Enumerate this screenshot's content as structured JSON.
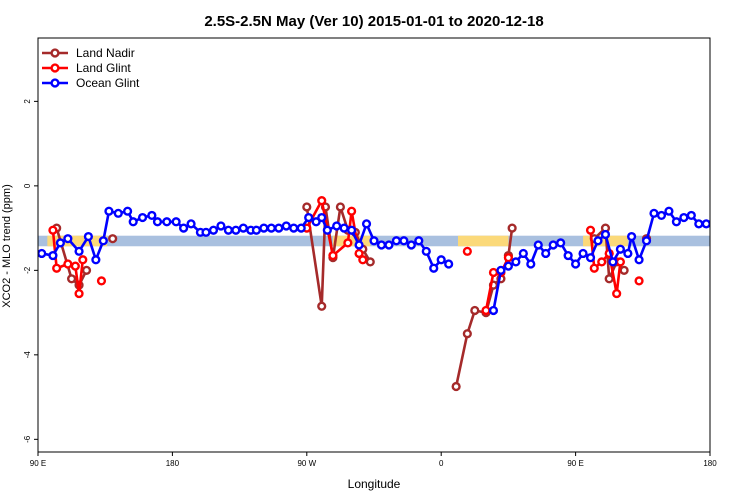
{
  "chart_data": {
    "type": "line",
    "title": "2.5S-2.5N May (Ver 10)   2015-01-01 to 2020-12-18",
    "xlabel": "Longitude",
    "ylabel": "XCO2 - MLO trend (ppm)",
    "xlim": [
      0,
      360
    ],
    "ylim": [
      -6.3,
      3.5
    ],
    "x_ticks": [
      {
        "value": 0,
        "label": "90 E"
      },
      {
        "value": 72,
        "label": "180"
      },
      {
        "value": 144,
        "label": "90 W"
      },
      {
        "value": 216,
        "label": "0"
      },
      {
        "value": 288,
        "label": "90 E"
      },
      {
        "value": 360,
        "label": "180"
      }
    ],
    "y_ticks": [
      2,
      0,
      -2,
      -4,
      -6
    ],
    "legend_position": "top-left",
    "background_bands": [
      {
        "color": "#a9c0df",
        "x": [
          0,
          360
        ],
        "y": [
          -1.43,
          -1.18
        ]
      },
      {
        "color": "#fbd97a",
        "x": [
          5,
          37
        ],
        "y": [
          -1.43,
          -1.18
        ]
      },
      {
        "color": "#fbd97a",
        "x": [
          158,
          178
        ],
        "y": [
          -1.43,
          -1.18
        ]
      },
      {
        "color": "#fbd97a",
        "x": [
          225,
          252
        ],
        "y": [
          -1.43,
          -1.18
        ]
      },
      {
        "color": "#fbd97a",
        "x": [
          292,
          316
        ],
        "y": [
          -1.43,
          -1.18
        ]
      }
    ],
    "series": [
      {
        "name": "Land Nadir",
        "color": "#a52a2a",
        "segments": [
          [
            [
              10,
              -1.0
            ],
            [
              18,
              -2.2
            ],
            [
              22,
              -2.35
            ],
            [
              26,
              -2.0
            ]
          ],
          [
            [
              40,
              -1.25
            ]
          ],
          [
            [
              144,
              -0.5
            ],
            [
              152,
              -2.85
            ],
            [
              154,
              -0.5
            ],
            [
              158,
              -1.7
            ],
            [
              162,
              -0.5
            ],
            [
              166,
              -1.05
            ],
            [
              170,
              -1.1
            ],
            [
              174,
              -1.5
            ],
            [
              178,
              -1.8
            ]
          ],
          [
            [
              224,
              -4.75
            ],
            [
              230,
              -3.5
            ],
            [
              234,
              -2.95
            ],
            [
              240,
              -3.0
            ],
            [
              244,
              -2.35
            ],
            [
              248,
              -2.2
            ],
            [
              252,
              -1.65
            ],
            [
              254,
              -1.0
            ]
          ],
          [
            [
              298,
              -1.25
            ],
            [
              304,
              -1.0
            ],
            [
              306,
              -2.2
            ],
            [
              310,
              -1.8
            ],
            [
              314,
              -2.0
            ]
          ],
          [
            [
              326,
              -1.25
            ]
          ]
        ]
      },
      {
        "name": "Land Glint",
        "color": "#ff0000",
        "segments": [
          [
            [
              8,
              -1.05
            ],
            [
              10,
              -1.95
            ],
            [
              16,
              -1.85
            ],
            [
              20,
              -1.9
            ],
            [
              22,
              -2.55
            ],
            [
              24,
              -1.75
            ]
          ],
          [
            [
              34,
              -2.25
            ]
          ],
          [
            [
              144,
              -1.0
            ],
            [
              152,
              -0.35
            ],
            [
              158,
              -1.65
            ],
            [
              166,
              -1.35
            ],
            [
              168,
              -0.6
            ],
            [
              172,
              -1.6
            ],
            [
              174,
              -1.75
            ]
          ],
          [
            [
              230,
              -1.55
            ]
          ],
          [
            [
              240,
              -2.95
            ],
            [
              244,
              -2.05
            ],
            [
              248,
              -2.05
            ],
            [
              252,
              -1.7
            ]
          ],
          [
            [
              296,
              -1.05
            ],
            [
              298,
              -1.95
            ],
            [
              302,
              -1.8
            ],
            [
              306,
              -1.6
            ],
            [
              310,
              -2.55
            ],
            [
              312,
              -1.8
            ]
          ],
          [
            [
              322,
              -2.25
            ]
          ]
        ]
      },
      {
        "name": "Ocean Glint",
        "color": "#0000ff",
        "segments": [
          [
            [
              2,
              -1.6
            ],
            [
              8,
              -1.65
            ],
            [
              12,
              -1.35
            ],
            [
              16,
              -1.25
            ],
            [
              22,
              -1.55
            ],
            [
              27,
              -1.2
            ],
            [
              31,
              -1.75
            ],
            [
              35,
              -1.3
            ],
            [
              38,
              -0.6
            ],
            [
              43,
              -0.65
            ],
            [
              48,
              -0.6
            ],
            [
              51,
              -0.85
            ],
            [
              56,
              -0.75
            ],
            [
              61,
              -0.7
            ],
            [
              64,
              -0.85
            ],
            [
              69,
              -0.85
            ],
            [
              74,
              -0.85
            ],
            [
              78,
              -1.0
            ],
            [
              82,
              -0.9
            ],
            [
              87,
              -1.1
            ],
            [
              90,
              -1.1
            ],
            [
              94,
              -1.05
            ],
            [
              98,
              -0.95
            ],
            [
              102,
              -1.05
            ],
            [
              106,
              -1.05
            ],
            [
              110,
              -1.0
            ],
            [
              114,
              -1.05
            ],
            [
              117,
              -1.05
            ],
            [
              121,
              -1.0
            ],
            [
              125,
              -1.0
            ],
            [
              129,
              -1.0
            ],
            [
              133,
              -0.95
            ],
            [
              137,
              -1.0
            ],
            [
              141,
              -1.0
            ],
            [
              145,
              -0.75
            ],
            [
              149,
              -0.85
            ],
            [
              152,
              -0.75
            ],
            [
              155,
              -1.05
            ],
            [
              160,
              -0.95
            ],
            [
              164,
              -1.0
            ],
            [
              168,
              -1.05
            ],
            [
              172,
              -1.4
            ],
            [
              176,
              -0.9
            ],
            [
              180,
              -1.3
            ],
            [
              184,
              -1.4
            ],
            [
              188,
              -1.4
            ],
            [
              192,
              -1.3
            ],
            [
              196,
              -1.3
            ],
            [
              200,
              -1.4
            ],
            [
              204,
              -1.3
            ],
            [
              208,
              -1.55
            ],
            [
              212,
              -1.95
            ],
            [
              216,
              -1.75
            ],
            [
              220,
              -1.85
            ]
          ],
          [
            [
              244,
              -2.95
            ],
            [
              248,
              -2.0
            ],
            [
              252,
              -1.9
            ],
            [
              256,
              -1.8
            ],
            [
              260,
              -1.6
            ],
            [
              264,
              -1.85
            ],
            [
              268,
              -1.4
            ],
            [
              272,
              -1.6
            ],
            [
              276,
              -1.4
            ],
            [
              280,
              -1.35
            ],
            [
              284,
              -1.65
            ],
            [
              288,
              -1.85
            ],
            [
              292,
              -1.6
            ],
            [
              296,
              -1.7
            ],
            [
              300,
              -1.3
            ],
            [
              304,
              -1.15
            ],
            [
              308,
              -1.8
            ],
            [
              312,
              -1.5
            ],
            [
              316,
              -1.6
            ],
            [
              318,
              -1.2
            ],
            [
              322,
              -1.75
            ],
            [
              326,
              -1.3
            ],
            [
              330,
              -0.65
            ],
            [
              334,
              -0.7
            ],
            [
              338,
              -0.6
            ],
            [
              342,
              -0.85
            ],
            [
              346,
              -0.75
            ],
            [
              350,
              -0.7
            ],
            [
              354,
              -0.9
            ],
            [
              358,
              -0.9
            ],
            [
              362,
              -0.85
            ]
          ]
        ]
      }
    ]
  }
}
